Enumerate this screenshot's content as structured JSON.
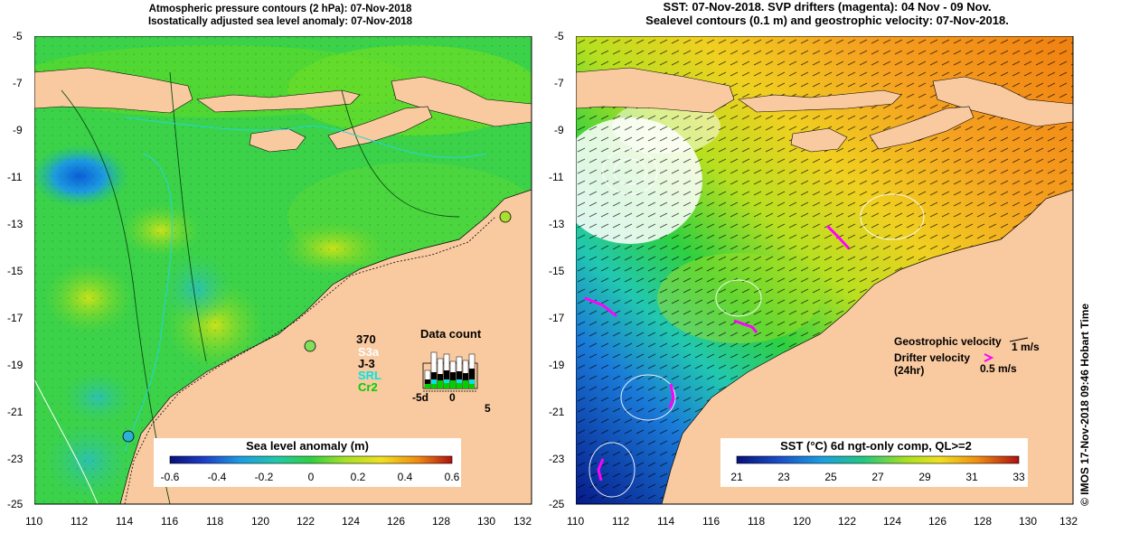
{
  "left": {
    "title_line1": "Atmospheric pressure contours (2 hPa): 07-Nov-2018",
    "title_line2": "Isostatically adjusted sea level anomaly: 07-Nov-2018",
    "colorbar": {
      "label": "Sea level anomaly (m)",
      "ticks": [
        "-0.6",
        "-0.4",
        "-0.2",
        "0",
        "0.2",
        "0.4",
        "0.6"
      ]
    },
    "data_count": {
      "title": "Data count",
      "total": "370",
      "legend": [
        {
          "label": "S3a",
          "color": "#ffffff"
        },
        {
          "label": "J-3",
          "color": "#000000"
        },
        {
          "label": "SRL",
          "color": "#00e5e5"
        },
        {
          "label": "Cr2",
          "color": "#00d000"
        }
      ],
      "axis_ticks": [
        "-5d",
        "0",
        "5"
      ]
    }
  },
  "right": {
    "title_line1": "SST: 07-Nov-2018. SVP drifters (magenta): 04 Nov - 09 Nov.",
    "title_line2": "Sealevel contours (0.1 m) and geostrophic velocity: 07-Nov-2018.",
    "colorbar": {
      "label": "SST (°C) 6d ngt-only comp, QL>=2",
      "ticks": [
        "21",
        "23",
        "25",
        "27",
        "29",
        "31",
        "33"
      ]
    },
    "legend": {
      "geo_label": "Geostrophic velocity",
      "geo_scale": "1 m/s",
      "drifter_label_1": "Drifter velocity",
      "drifter_label_2": "(24hr)",
      "drifter_scale": "0.5 m/s"
    }
  },
  "axes": {
    "lat_ticks": [
      "-5",
      "-7",
      "-9",
      "-11",
      "-13",
      "-15",
      "-17",
      "-19",
      "-21",
      "-23",
      "-25"
    ],
    "lon_ticks": [
      "110",
      "112",
      "114",
      "116",
      "118",
      "120",
      "122",
      "124",
      "126",
      "128",
      "130",
      "132"
    ]
  },
  "credit": "© IMOS 17-Nov-2018 09:46 Hobart Time"
}
